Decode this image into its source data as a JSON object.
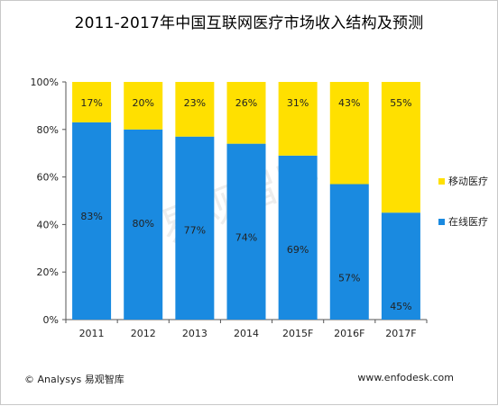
{
  "chart_data": {
    "type": "bar",
    "stacked": true,
    "percent": true,
    "title": "2011-2017年中国互联网医疗市场收入结构及预测",
    "categories": [
      "2011",
      "2012",
      "2013",
      "2014",
      "2015F",
      "2016F",
      "2017F"
    ],
    "series": [
      {
        "name": "在线医疗",
        "color": "#1a8ae0",
        "values": [
          83,
          80,
          77,
          74,
          69,
          57,
          45
        ],
        "labels": [
          "83%",
          "80%",
          "77%",
          "74%",
          "69%",
          "57%",
          "45%"
        ]
      },
      {
        "name": "移动医疗",
        "color": "#ffe000",
        "values": [
          17,
          20,
          23,
          26,
          31,
          43,
          55
        ],
        "labels": [
          "17%",
          "20%",
          "23%",
          "26%",
          "31%",
          "43%",
          "55%"
        ]
      }
    ],
    "ylim": [
      0,
      100
    ],
    "yticks": [
      0,
      20,
      40,
      60,
      80,
      100
    ],
    "ytick_labels": [
      "0%",
      "20%",
      "40%",
      "60%",
      "80%",
      "100%"
    ],
    "legend_position": "right",
    "grid": false
  },
  "watermark": "易观智库",
  "footer": {
    "source": "© Analysys 易观智库",
    "website": "www.enfodesk.com"
  }
}
